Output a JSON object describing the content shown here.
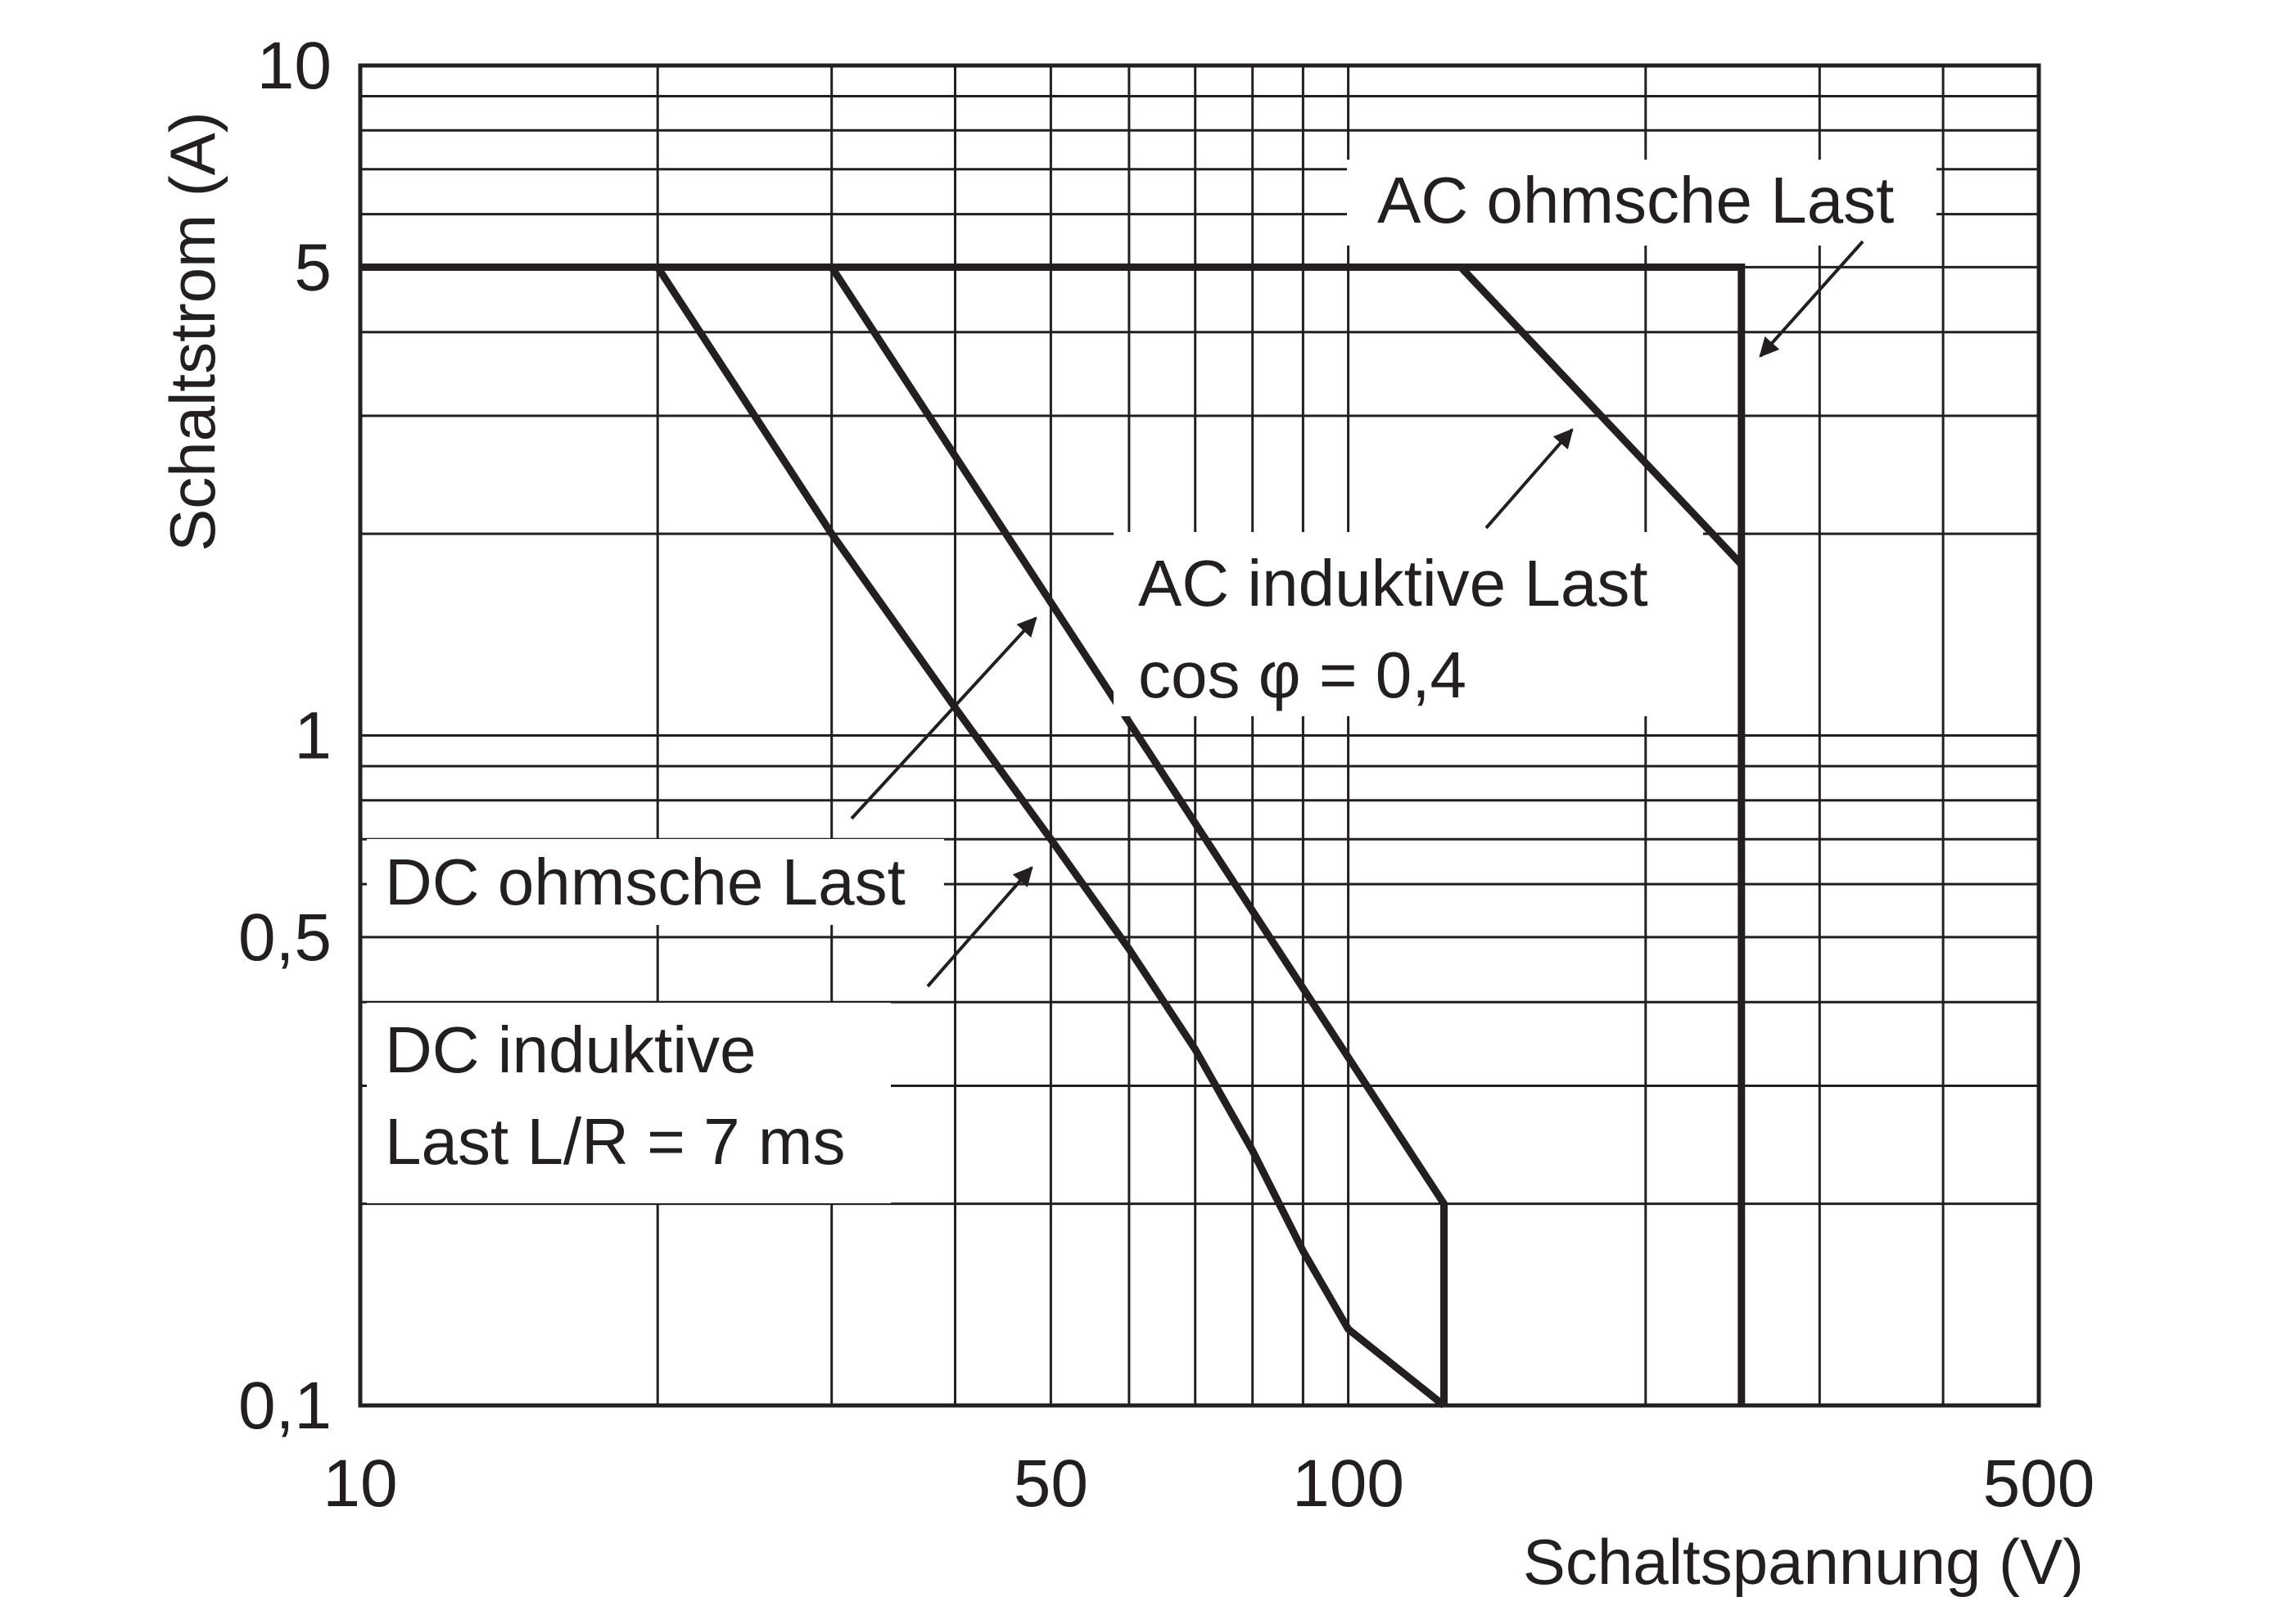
{
  "chart_data": {
    "type": "line",
    "xlabel": "Schaltspannung (V)",
    "ylabel": "Schaltstrom (A)",
    "x_scale": "log",
    "y_scale": "log",
    "xlim": [
      10,
      500
    ],
    "ylim": [
      0.1,
      10
    ],
    "x_ticks": [
      {
        "value": 10,
        "label": "10"
      },
      {
        "value": 50,
        "label": "50"
      },
      {
        "value": 100,
        "label": "100"
      },
      {
        "value": 500,
        "label": "500"
      }
    ],
    "y_ticks": [
      {
        "value": 0.1,
        "label": "0,1"
      },
      {
        "value": 0.5,
        "label": "0,5"
      },
      {
        "value": 1,
        "label": "1"
      },
      {
        "value": 5,
        "label": "5"
      },
      {
        "value": 10,
        "label": "10"
      }
    ],
    "grid": true,
    "series": [
      {
        "name": "AC ohmsche Last",
        "points": [
          [
            10,
            5
          ],
          [
            250,
            5
          ],
          [
            250,
            0.1
          ]
        ]
      },
      {
        "name": "AC induktive Last cos φ = 0,4",
        "points": [
          [
            130,
            5
          ],
          [
            250,
            1.8
          ]
        ]
      },
      {
        "name": "DC ohmsche Last",
        "points": [
          [
            30,
            5
          ],
          [
            125,
            0.2
          ],
          [
            125,
            0.1
          ]
        ]
      },
      {
        "name": "DC induktive Last L/R = 7 ms",
        "points": [
          [
            20,
            5
          ],
          [
            30,
            2
          ],
          [
            40,
            1.1
          ],
          [
            50,
            0.7
          ],
          [
            60,
            0.48
          ],
          [
            70,
            0.34
          ],
          [
            80,
            0.24
          ],
          [
            90,
            0.17
          ],
          [
            100,
            0.13
          ],
          [
            125,
            0.1
          ]
        ]
      }
    ],
    "annotations": [
      {
        "id": "ac-ohm",
        "lines": [
          "AC ohmsche Last"
        ]
      },
      {
        "id": "ac-ind",
        "lines": [
          "AC induktive Last",
          "cos φ = 0,4"
        ]
      },
      {
        "id": "dc-ohm",
        "lines": [
          "DC ohmsche Last"
        ]
      },
      {
        "id": "dc-ind",
        "lines": [
          "DC induktive",
          "Last L/R = 7 ms"
        ]
      }
    ]
  }
}
